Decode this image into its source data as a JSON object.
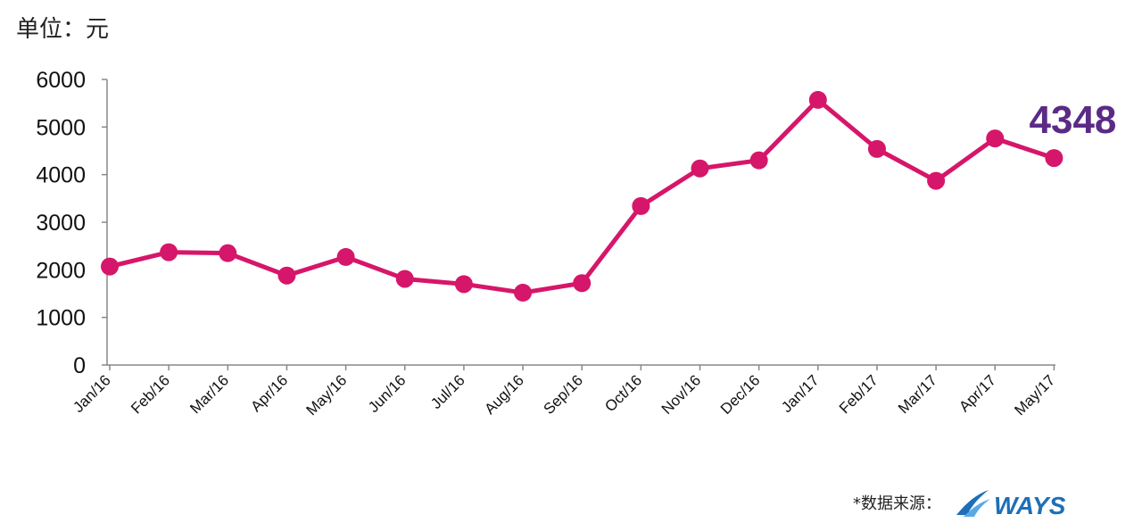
{
  "unit_label": "单位：元",
  "source_label": "*数据来源：",
  "logo_text": "WAYS",
  "colors": {
    "line": "#d6166a",
    "callout": "#5b2a86",
    "axis": "#888888",
    "text": "#111111",
    "logo": "#1d6fb8"
  },
  "chart_data": {
    "type": "line",
    "title": "",
    "xlabel": "",
    "ylabel": "",
    "ylim": [
      0,
      6000
    ],
    "yticks": [
      0,
      1000,
      2000,
      3000,
      4000,
      5000,
      6000
    ],
    "grid": false,
    "legend": "none",
    "categories": [
      "Jan/16",
      "Feb/16",
      "Mar/16",
      "Apr/16",
      "May/16",
      "Jun/16",
      "Jul/16",
      "Aug/16",
      "Sep/16",
      "Oct/16",
      "Nov/16",
      "Dec/16",
      "Jan/17",
      "Feb/17",
      "Mar/17",
      "Apr/17",
      "May/17"
    ],
    "series": [
      {
        "values": [
          2070,
          2370,
          2350,
          1880,
          2270,
          1810,
          1700,
          1520,
          1720,
          3340,
          4130,
          4300,
          5570,
          4540,
          3870,
          4760,
          4348
        ]
      }
    ],
    "annotation": {
      "label": "4348",
      "category": "May/17"
    }
  }
}
